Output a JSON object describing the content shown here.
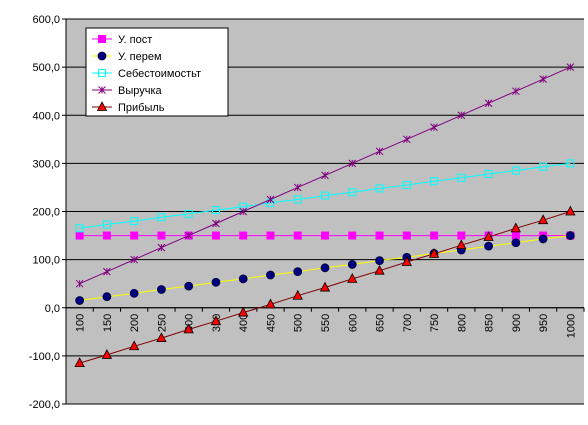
{
  "chart_data": {
    "type": "line",
    "x": [
      100,
      150,
      200,
      250,
      300,
      350,
      400,
      450,
      500,
      550,
      600,
      650,
      700,
      750,
      800,
      850,
      900,
      950,
      1000
    ],
    "ylim": [
      -200,
      600
    ],
    "yticks": [
      "600,0",
      "500,0",
      "400,0",
      "300,0",
      "200,0",
      "100,0",
      "0,0",
      "-100,0",
      "-200,0"
    ],
    "ytick_values": [
      600,
      500,
      400,
      300,
      200,
      100,
      0,
      -100,
      -200
    ],
    "grid": true,
    "legend_position": "top-left",
    "plot_background": "#c0c0c0",
    "series": [
      {
        "name": "У. пост",
        "color": "#ff00ff",
        "marker": "square",
        "values": [
          150,
          150,
          150,
          150,
          150,
          150,
          150,
          150,
          150,
          150,
          150,
          150,
          150,
          150,
          150,
          150,
          150,
          150,
          150
        ]
      },
      {
        "name": "У. перем",
        "color": "#000080",
        "line_color": "#ffff00",
        "marker": "circle",
        "values": [
          15,
          23,
          30,
          38,
          45,
          53,
          60,
          68,
          75,
          83,
          90,
          98,
          105,
          113,
          120,
          128,
          135,
          143,
          150
        ]
      },
      {
        "name": "Себестоимостьт",
        "color": "#00ffff",
        "marker": "open-square",
        "values": [
          165,
          173,
          180,
          188,
          195,
          203,
          210,
          218,
          225,
          233,
          240,
          248,
          255,
          263,
          270,
          278,
          285,
          293,
          300
        ]
      },
      {
        "name": "Выручка",
        "color": "#800080",
        "marker": "star",
        "values": [
          50,
          75,
          100,
          125,
          150,
          175,
          200,
          225,
          250,
          275,
          300,
          325,
          350,
          375,
          400,
          425,
          450,
          475,
          500
        ]
      },
      {
        "name": "Прибыль",
        "color": "#800000",
        "marker_fill": "#ff0000",
        "marker": "triangle",
        "values": [
          -115,
          -98,
          -80,
          -63,
          -45,
          -28,
          -10,
          7,
          25,
          42,
          60,
          77,
          95,
          112,
          130,
          147,
          165,
          182,
          200
        ]
      }
    ]
  }
}
